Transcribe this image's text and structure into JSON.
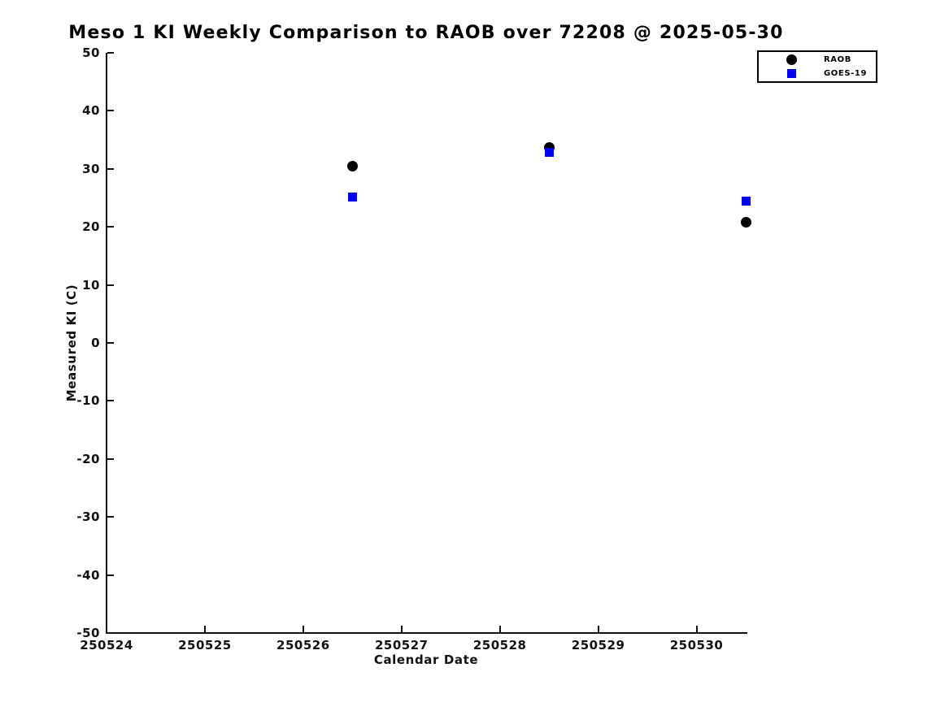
{
  "chart_data": {
    "type": "scatter",
    "title": "Meso 1 KI Weekly Comparison to RAOB over 72208 @ 2025-05-30",
    "xlabel": "Calendar Date",
    "ylabel": "Measured KI (C)",
    "xlim": [
      250524,
      250530.5
    ],
    "ylim": [
      -50,
      50
    ],
    "xticks": [
      250524,
      250525,
      250526,
      250527,
      250528,
      250529,
      250530
    ],
    "yticks": [
      50,
      40,
      30,
      20,
      10,
      0,
      -10,
      -20,
      -30,
      -40,
      -50
    ],
    "grid": false,
    "legend_position": "top-right",
    "series": [
      {
        "name": "RAOB",
        "marker": "circle",
        "color": "#000000",
        "points": [
          [
            250526.5,
            30.4
          ],
          [
            250528.5,
            33.7
          ],
          [
            250530.5,
            20.8
          ]
        ]
      },
      {
        "name": "GOES-19",
        "marker": "square",
        "color": "#0202f0",
        "points": [
          [
            250526.5,
            25.2
          ],
          [
            250528.5,
            32.9
          ],
          [
            250530.5,
            24.4
          ]
        ]
      }
    ]
  }
}
